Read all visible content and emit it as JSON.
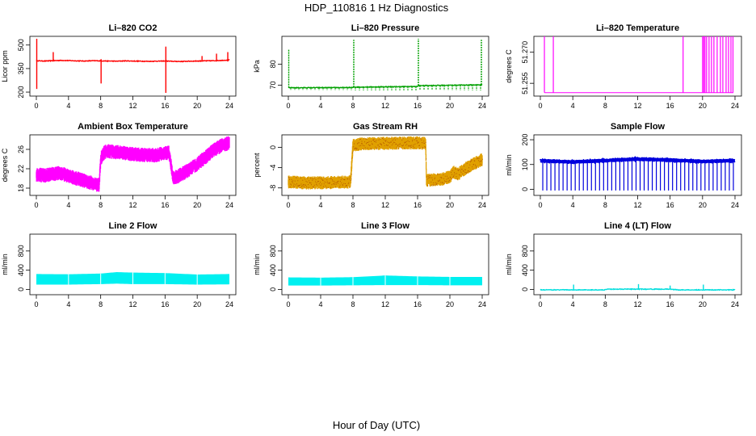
{
  "figure": {
    "title": "HDP_110816  1 Hz Diagnostics",
    "xlabel": "Hour of Day (UTC)"
  },
  "chart_data": [
    {
      "id": "co2",
      "type": "line",
      "title": "Li–820 CO2",
      "ylabel": "Licor ppm",
      "color": "#ff0000",
      "ylim": [
        190,
        540
      ],
      "yticks": [
        200,
        350,
        500
      ],
      "xlim": [
        0,
        24
      ],
      "xticks": [
        0,
        4,
        8,
        12,
        16,
        20,
        24
      ],
      "series": [
        {
          "name": "CO2",
          "x": [
            0,
            1,
            2,
            3,
            4,
            5,
            6,
            7,
            8,
            9,
            10,
            11,
            12,
            13,
            14,
            15,
            16,
            17,
            18,
            19,
            20,
            21,
            22,
            23,
            24
          ],
          "values": [
            400,
            398,
            400,
            402,
            401,
            399,
            398,
            400,
            399,
            398,
            397,
            399,
            398,
            397,
            396,
            397,
            398,
            396,
            395,
            397,
            398,
            399,
            400,
            402,
            405
          ]
        }
      ],
      "spikes": [
        {
          "x": 0.05,
          "low": 220,
          "high": 540
        },
        {
          "x": 2.1,
          "low": 395,
          "high": 455
        },
        {
          "x": 8.05,
          "low": 255,
          "high": 410
        },
        {
          "x": 16.1,
          "low": 195,
          "high": 490
        },
        {
          "x": 20.6,
          "low": 395,
          "high": 430
        },
        {
          "x": 22.4,
          "low": 395,
          "high": 445
        },
        {
          "x": 23.8,
          "low": 395,
          "high": 455
        }
      ]
    },
    {
      "id": "pressure",
      "type": "line",
      "title": "Li–820 Pressure",
      "ylabel": "kPa",
      "color": "#00a000",
      "ylim": [
        66,
        92
      ],
      "yticks": [
        70,
        80
      ],
      "xlim": [
        0,
        24
      ],
      "xticks": [
        0,
        4,
        8,
        12,
        16,
        20,
        24
      ],
      "series": [
        {
          "name": "Pressure",
          "x": [
            0,
            8,
            8.1,
            16,
            16.1,
            24
          ],
          "values": [
            68.8,
            68.9,
            69.1,
            69.4,
            69.8,
            70.2
          ]
        }
      ],
      "dips_every_hours": 0.5,
      "dip_value": 67.6,
      "spikes": [
        {
          "x": 0.05,
          "high": 87
        },
        {
          "x": 8.1,
          "high": 91.5
        },
        {
          "x": 16.1,
          "high": 92
        },
        {
          "x": 23.9,
          "high": 91.5
        }
      ]
    },
    {
      "id": "licor_temp",
      "type": "line",
      "title": "Li–820 Temperature",
      "ylabel": "degrees C",
      "color": "#ff00ff",
      "ylim": [
        51.25,
        51.2765
      ],
      "yticks": [
        51.255,
        51.27
      ],
      "ytick_labels": [
        "51.255",
        "51.270"
      ],
      "xlim": [
        0,
        24
      ],
      "xticks": [
        0,
        4,
        8,
        12,
        16,
        20,
        24
      ],
      "baseline": 51.2505,
      "spikes_x": [
        0.5,
        1.6,
        17.6,
        20.0,
        20.15,
        20.3,
        20.5,
        20.8,
        21.1,
        21.4,
        21.8,
        22.2,
        22.5,
        22.9,
        23.2,
        23.5,
        23.75
      ]
    },
    {
      "id": "box_temp",
      "type": "line",
      "title": "Ambient Box Temperature",
      "ylabel": "degrees C",
      "color": "#ff00ff",
      "ylim": [
        17,
        28.5
      ],
      "yticks": [
        18,
        22,
        26
      ],
      "xlim": [
        0,
        24
      ],
      "xticks": [
        0,
        4,
        8,
        12,
        16,
        20,
        24
      ],
      "series": [
        {
          "name": "Box temperature",
          "x": [
            0,
            1,
            2,
            3,
            4,
            5,
            6,
            7,
            7.8,
            8.0,
            8.5,
            9,
            10,
            11,
            12,
            13,
            14,
            15,
            16,
            16.5,
            17,
            18,
            19,
            20,
            21,
            22,
            23,
            24
          ],
          "values": [
            20.8,
            20.6,
            20.9,
            21.1,
            20.5,
            20.0,
            19.5,
            19.0,
            18.6,
            24,
            25.5,
            25.6,
            25.4,
            25.2,
            25.0,
            24.9,
            24.8,
            24.8,
            25.3,
            25.3,
            20.0,
            20.8,
            21.8,
            23.0,
            24.3,
            25.8,
            26.8,
            27.3
          ]
        }
      ],
      "band": 1.5
    },
    {
      "id": "rh",
      "type": "line",
      "title": "Gas Stream RH",
      "ylabel": "percent",
      "color": "#e0a000",
      "ylim": [
        -9,
        2
      ],
      "yticks": [
        -8,
        -4,
        0
      ],
      "xlim": [
        0,
        24
      ],
      "xticks": [
        0,
        4,
        8,
        12,
        16,
        20,
        24
      ],
      "series": [
        {
          "name": "RH",
          "x": [
            0,
            2,
            4,
            6,
            7.7,
            8.0,
            9,
            12,
            16,
            17,
            17.1,
            19,
            20,
            20.5,
            21,
            22,
            23,
            24
          ],
          "values": [
            -6.8,
            -7.0,
            -7.0,
            -6.9,
            -6.8,
            0.4,
            0.7,
            0.8,
            0.9,
            0.8,
            -6.5,
            -6.3,
            -5.8,
            -4.9,
            -5.3,
            -4.1,
            -3.2,
            -2.4
          ]
        }
      ],
      "band": 1.3
    },
    {
      "id": "sample_flow",
      "type": "line",
      "title": "Sample Flow",
      "ylabel": "ml/min",
      "color": "#0000dd",
      "ylim": [
        -15,
        210
      ],
      "yticks": [
        0,
        100,
        200
      ],
      "xlim": [
        0,
        24
      ],
      "xticks": [
        0,
        4,
        8,
        12,
        16,
        20,
        24
      ],
      "series": [
        {
          "name": "Sample flow",
          "x": [
            0,
            4,
            8,
            12,
            16,
            20,
            24
          ],
          "values": [
            115,
            110,
            116,
            122,
            118,
            112,
            116
          ]
        }
      ],
      "dips_every_hours": 0.5,
      "dip_value": -5
    },
    {
      "id": "line2",
      "type": "area",
      "title": "Line 2 Flow",
      "ylabel": "ml/min",
      "color": "#00f0f0",
      "ylim": [
        -60,
        1100
      ],
      "yticks": [
        0,
        400,
        800
      ],
      "xlim": [
        0,
        24
      ],
      "xticks": [
        0,
        4,
        8,
        12,
        16,
        20,
        24
      ],
      "series": [
        {
          "name": "Line 2 flow",
          "x": [
            0,
            4,
            8,
            10,
            12,
            16,
            20,
            24
          ],
          "upper": [
            320,
            315,
            330,
            360,
            350,
            340,
            310,
            320
          ],
          "lower": [
            100,
            100,
            110,
            120,
            110,
            110,
            100,
            105
          ]
        }
      ]
    },
    {
      "id": "line3",
      "type": "area",
      "title": "Line 3 Flow",
      "ylabel": "ml/min",
      "color": "#00f0f0",
      "ylim": [
        -60,
        1100
      ],
      "yticks": [
        0,
        400,
        800
      ],
      "xlim": [
        0,
        24
      ],
      "xticks": [
        0,
        4,
        8,
        12,
        16,
        20,
        24
      ],
      "series": [
        {
          "name": "Line 3 flow",
          "x": [
            0,
            4,
            8,
            12,
            16,
            20,
            24
          ],
          "upper": [
            250,
            245,
            255,
            290,
            270,
            260,
            260
          ],
          "lower": [
            80,
            80,
            85,
            90,
            90,
            85,
            85
          ]
        }
      ]
    },
    {
      "id": "line4",
      "type": "line",
      "title": "Line 4 (LT) Flow",
      "ylabel": "ml/min",
      "color": "#00dddd",
      "ylim": [
        -60,
        1100
      ],
      "yticks": [
        0,
        400,
        800
      ],
      "xlim": [
        0,
        24
      ],
      "xticks": [
        0,
        4,
        8,
        12,
        16,
        20,
        24
      ],
      "series": [
        {
          "name": "Line 4 flow",
          "x": [
            0,
            8,
            8.1,
            16,
            17,
            24
          ],
          "values": [
            -10,
            -10,
            5,
            5,
            -10,
            -10
          ]
        }
      ],
      "spikes": [
        {
          "x": 4.1,
          "high": 100
        },
        {
          "x": 12.1,
          "high": 110
        },
        {
          "x": 16.0,
          "high": 80
        },
        {
          "x": 20.1,
          "high": 100
        }
      ]
    }
  ]
}
